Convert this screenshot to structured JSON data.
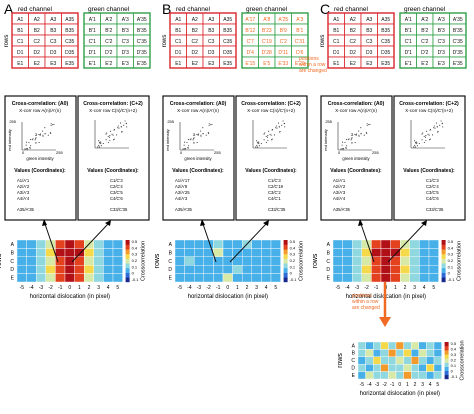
{
  "panel_letters": [
    "A",
    "B",
    "C"
  ],
  "grid_titles": {
    "red": "red channel",
    "green": "green channel"
  },
  "rows_label": "rows",
  "grid_a": {
    "red": [
      [
        "A1",
        "A2",
        "A3",
        "A35"
      ],
      [
        "B1",
        "B2",
        "B3",
        "B35"
      ],
      [
        "C1",
        "C2",
        "C3",
        "C35"
      ],
      [
        "D1",
        "D2",
        "D3",
        "D35"
      ],
      [
        "E1",
        "E2",
        "E3",
        "E35"
      ]
    ],
    "green": [
      [
        "A'1",
        "A'2",
        "A'3",
        "A'35"
      ],
      [
        "B'1",
        "B'2",
        "B'3",
        "B'35"
      ],
      [
        "C'1",
        "C'2",
        "C'3",
        "C'35"
      ],
      [
        "D'1",
        "D'2",
        "D'3",
        "D'35"
      ],
      [
        "E'1",
        "E'2",
        "E'3",
        "E'35"
      ]
    ]
  },
  "grid_b_green": [
    [
      "A'17",
      "A'8",
      "A'25",
      "A'3"
    ],
    [
      "B'12",
      "B'23",
      "B'9",
      "B'1"
    ],
    [
      "C'7",
      "C'19",
      "C'2",
      "C'31"
    ],
    [
      "D'4",
      "D'28",
      "D'11",
      "D'6"
    ],
    [
      "E'15",
      "E'5",
      "E'33",
      "E'20"
    ]
  ],
  "positions_note_b": [
    "positions",
    "within a row",
    "are changed"
  ],
  "positions_note_c": [
    "positions",
    "within a row",
    "are changed"
  ],
  "xcorr": {
    "left_title": "Cross-correlation: (A0)",
    "left_sub": "X-corr row A(n)/A'(n)",
    "right_title": "Cross-correlation: (C+2)",
    "right_sub": "X-corr row C(n)/C'(n+2)",
    "max_tick": "255",
    "min_tick": "0",
    "red_axis": "red intensity",
    "green_axis": "green intensity",
    "values_label": "Values (Coordinates):",
    "left_values_a": [
      "A1/A'1",
      "A2/A'2",
      "A3/A'3",
      "A4/A'4",
      "A35/A'35"
    ],
    "right_values_a": [
      "C1/C'3",
      "C2/C'4",
      "C3/C'5",
      "C4/C'6",
      "C33/C'35"
    ],
    "left_values_b": [
      "A1/A'17",
      "A2/A'8",
      "A3/A'25",
      "A4/A'3",
      "A35/A'35"
    ],
    "right_values_b": [
      "C1/C'3",
      "C2/C'19",
      "C3/C'2",
      "C4/C'1",
      "C33/C'35"
    ],
    "left_values_c": [
      "A1/A'1",
      "A2/A'2",
      "A3/A'3",
      "A4/A'4",
      "A35/A'35"
    ],
    "right_values_c": [
      "C1/C'3",
      "C2/C'4",
      "C3/C'5",
      "C4/C'6",
      "C33/C'35"
    ]
  },
  "heatmap": {
    "x_ticks": [
      "-5",
      "-4",
      "-3",
      "-2",
      "-1",
      "0",
      "1",
      "2",
      "3",
      "4",
      "5"
    ],
    "row_labels": [
      "A",
      "B",
      "C",
      "D",
      "E"
    ],
    "x_label": "horizontal dislocation (in pixel)",
    "y_label": "rows",
    "cbar_label": "Crosscorrelation",
    "cbar_ticks": [
      "0.5",
      "0.4",
      "0.3",
      "0.2",
      "0.1",
      "0",
      "-0.1"
    ],
    "colors": [
      "#1a2a8c",
      "#2f6bd6",
      "#47b0e8",
      "#8fd8df",
      "#d7e9a6",
      "#f5d94a",
      "#f39a2d",
      "#e4411f",
      "#b21017"
    ],
    "a_values": [
      [
        0.05,
        0.08,
        0.12,
        0.22,
        0.42,
        0.5,
        0.42,
        0.22,
        0.12,
        0.08,
        0.05
      ],
      [
        0.06,
        0.09,
        0.13,
        0.25,
        0.45,
        0.52,
        0.45,
        0.25,
        0.12,
        0.07,
        0.05
      ],
      [
        0.05,
        0.07,
        0.12,
        0.2,
        0.4,
        0.48,
        0.4,
        0.2,
        0.11,
        0.06,
        0.04
      ],
      [
        0.06,
        0.08,
        0.14,
        0.24,
        0.43,
        0.5,
        0.43,
        0.24,
        0.13,
        0.07,
        0.05
      ],
      [
        0.05,
        0.08,
        0.12,
        0.22,
        0.41,
        0.49,
        0.41,
        0.22,
        0.12,
        0.07,
        0.05
      ]
    ],
    "b_values": [
      [
        0.05,
        0.08,
        0.07,
        0.09,
        0.1,
        0.06,
        0.08,
        0.1,
        0.07,
        0.06,
        0.05
      ],
      [
        0.07,
        0.06,
        0.09,
        0.07,
        0.2,
        0.08,
        0.06,
        0.09,
        0.07,
        0.08,
        0.06
      ],
      [
        0.06,
        0.1,
        0.07,
        0.08,
        0.07,
        0.09,
        0.07,
        0.06,
        0.08,
        0.07,
        0.05
      ],
      [
        0.08,
        0.06,
        0.09,
        0.06,
        0.08,
        0.07,
        0.1,
        0.08,
        0.06,
        0.09,
        0.07
      ],
      [
        0.05,
        0.07,
        0.06,
        0.09,
        0.07,
        0.2,
        0.06,
        0.07,
        0.09,
        0.06,
        0.05
      ]
    ],
    "c_values": [
      [
        0.05,
        0.08,
        0.12,
        0.22,
        0.42,
        0.5,
        0.42,
        0.22,
        0.12,
        0.08,
        0.05
      ],
      [
        0.06,
        0.09,
        0.13,
        0.25,
        0.45,
        0.52,
        0.45,
        0.25,
        0.12,
        0.07,
        0.05
      ],
      [
        0.05,
        0.07,
        0.12,
        0.2,
        0.4,
        0.48,
        0.4,
        0.2,
        0.11,
        0.06,
        0.04
      ],
      [
        0.06,
        0.08,
        0.14,
        0.24,
        0.43,
        0.5,
        0.43,
        0.24,
        0.13,
        0.07,
        0.05
      ],
      [
        0.05,
        0.08,
        0.12,
        0.22,
        0.41,
        0.49,
        0.41,
        0.22,
        0.12,
        0.07,
        0.05
      ]
    ],
    "d_values": [
      [
        0.1,
        0.08,
        0.15,
        0.28,
        0.12,
        0.35,
        0.1,
        0.22,
        0.09,
        0.14,
        0.07
      ],
      [
        0.12,
        0.2,
        0.09,
        0.1,
        0.3,
        0.12,
        0.25,
        0.08,
        0.18,
        0.1,
        0.09
      ],
      [
        0.08,
        0.12,
        0.26,
        0.14,
        0.1,
        0.22,
        0.1,
        0.3,
        0.12,
        0.08,
        0.11
      ],
      [
        0.15,
        0.09,
        0.12,
        0.32,
        0.14,
        0.1,
        0.2,
        0.12,
        0.09,
        0.24,
        0.08
      ],
      [
        0.09,
        0.18,
        0.1,
        0.12,
        0.22,
        0.14,
        0.3,
        0.1,
        0.16,
        0.08,
        0.12
      ]
    ]
  },
  "colors": {
    "red": "#d9262c",
    "green": "#31a049",
    "orange": "#f06a23"
  }
}
